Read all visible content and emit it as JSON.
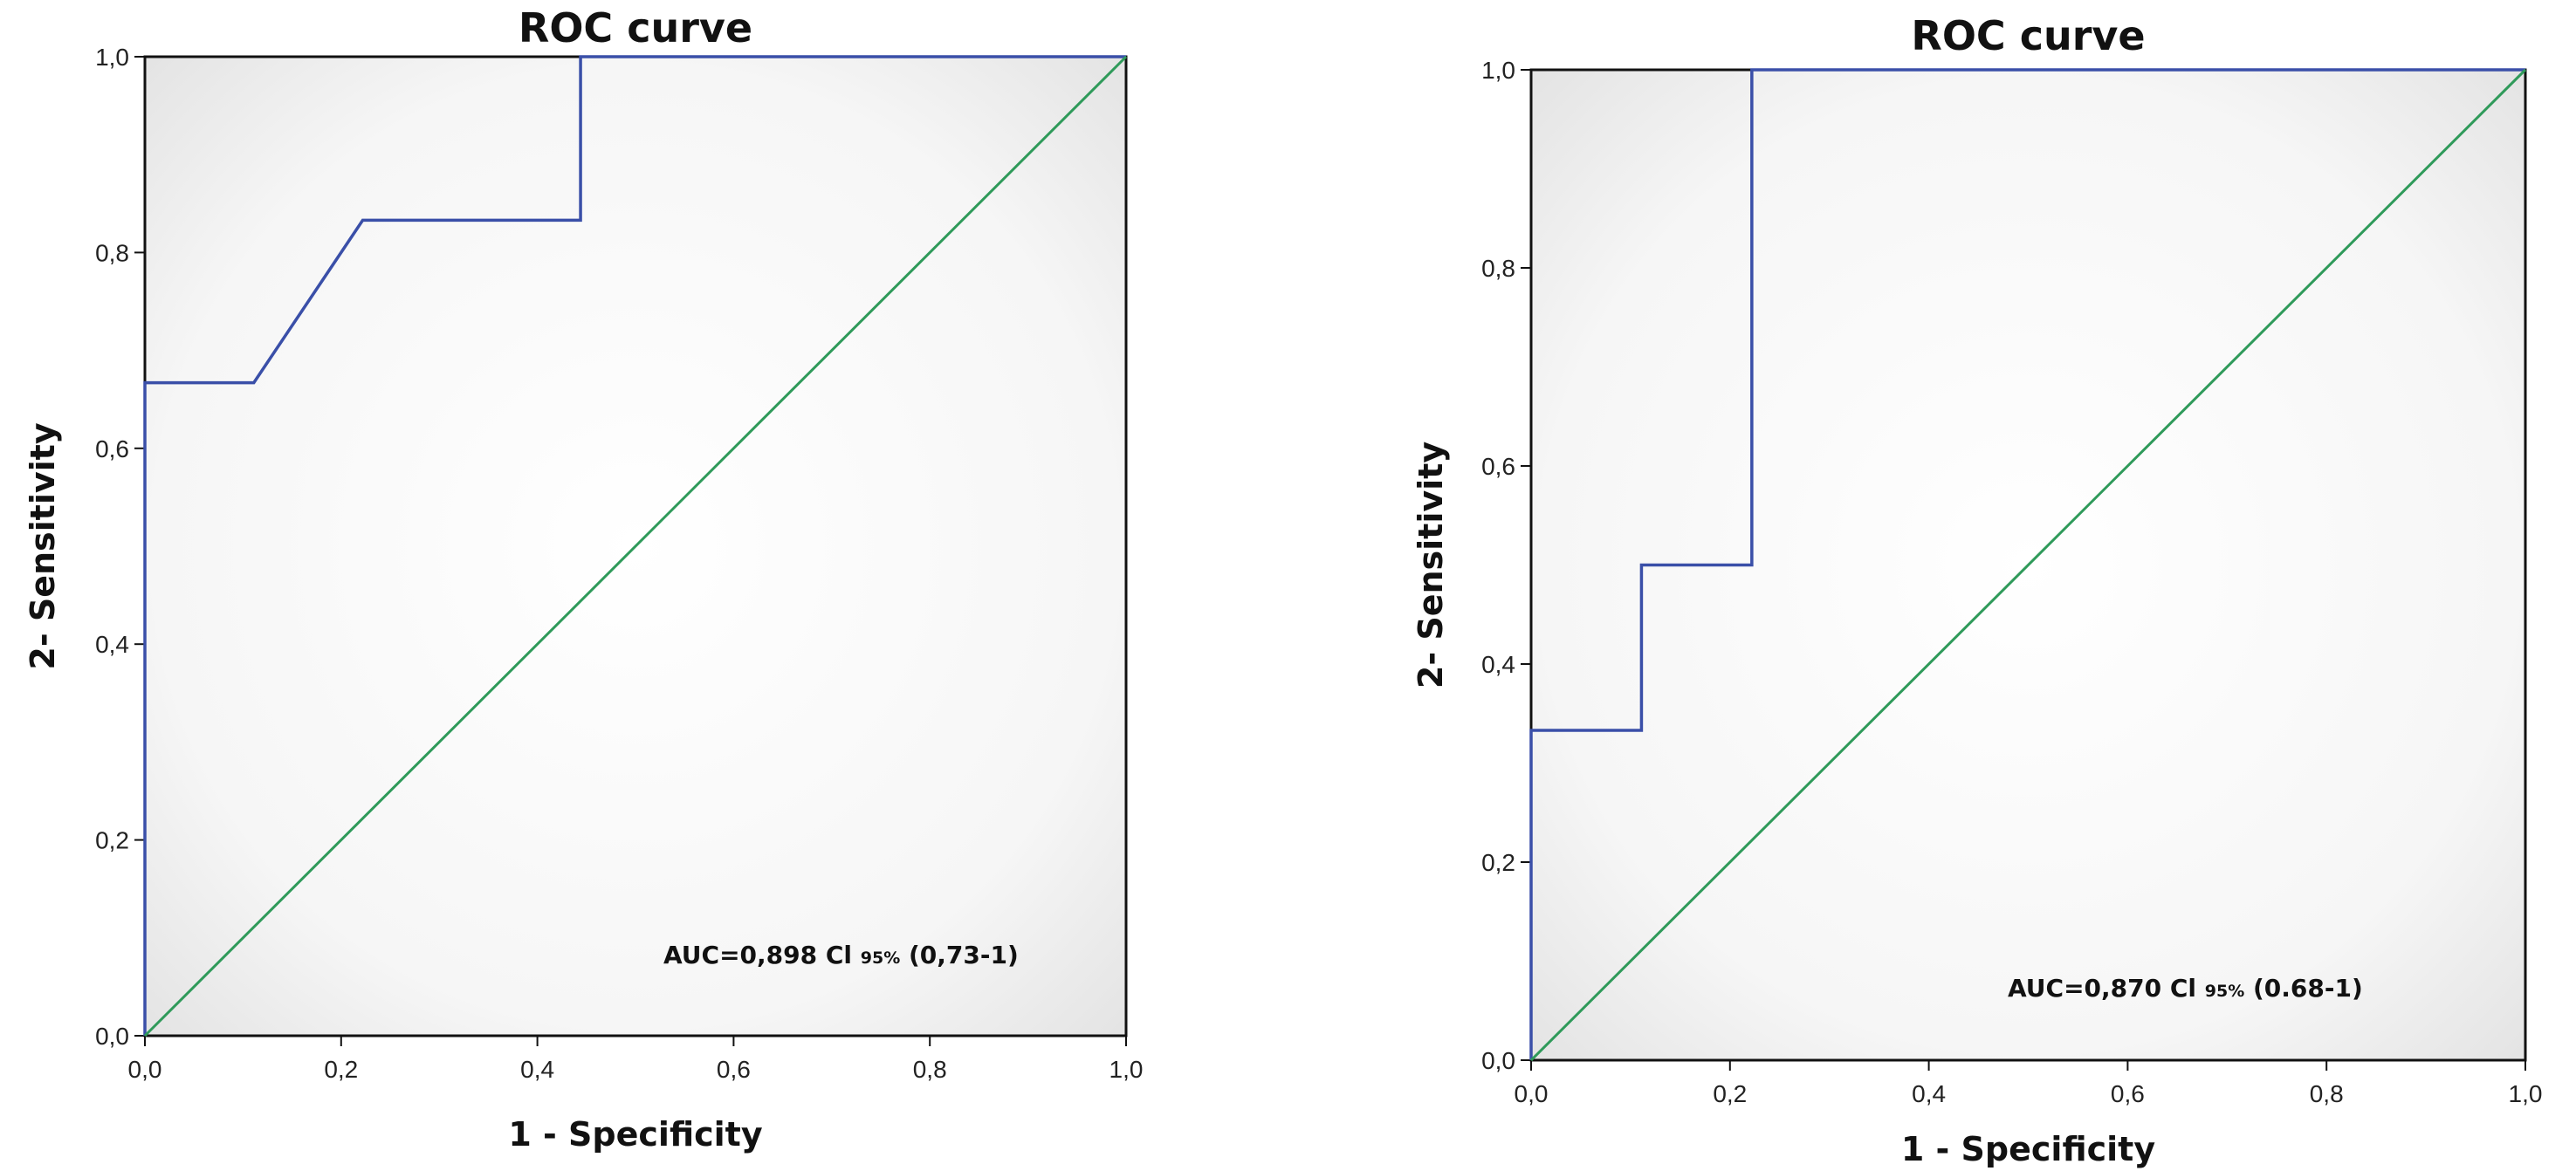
{
  "chart_data": [
    {
      "type": "line",
      "title": "ROC curve",
      "xlabel": "1 -  Specificity",
      "ylabel": "2- Sensitivity",
      "xlim": [
        0,
        1
      ],
      "ylim": [
        0,
        1
      ],
      "xticks": [
        "0,0",
        "0,2",
        "0,4",
        "0,6",
        "0,8",
        "1,0"
      ],
      "yticks": [
        "0,0",
        "0,2",
        "0,4",
        "0,6",
        "0,8",
        "1,0"
      ],
      "grid": false,
      "series": [
        {
          "name": "ROC",
          "color": "#3a4fa8",
          "x": [
            0,
            0,
            0.111,
            0.222,
            0.444,
            0.444,
            1.0
          ],
          "y": [
            0,
            0.667,
            0.667,
            0.833,
            0.833,
            1.0,
            1.0
          ]
        },
        {
          "name": "Reference line",
          "color": "#2f9a5a",
          "x": [
            0,
            1
          ],
          "y": [
            0,
            1
          ]
        }
      ],
      "annotation": {
        "main": "AUC=0,898  Cl ",
        "sub": "95%",
        "ci": " (0,73-1)"
      }
    },
    {
      "type": "line",
      "title": "ROC curve",
      "xlabel": "1 -  Specificity",
      "ylabel": "2- Sensitivity",
      "xlim": [
        0,
        1
      ],
      "ylim": [
        0,
        1
      ],
      "xticks": [
        "0,0",
        "0,2",
        "0,4",
        "0,6",
        "0,8",
        "1,0"
      ],
      "yticks": [
        "0,0",
        "0,2",
        "0,4",
        "0,6",
        "0,8",
        "1,0"
      ],
      "grid": false,
      "series": [
        {
          "name": "ROC",
          "color": "#3a4fa8",
          "x": [
            0,
            0,
            0.111,
            0.111,
            0.222,
            0.222,
            1.0
          ],
          "y": [
            0,
            0.333,
            0.333,
            0.5,
            0.5,
            1.0,
            1.0
          ]
        },
        {
          "name": "Reference line",
          "color": "#2f9a5a",
          "x": [
            0,
            1
          ],
          "y": [
            0,
            1
          ]
        }
      ],
      "annotation": {
        "main": "AUC=0,870  Cl ",
        "sub": "95%",
        "ci": " (0.68-1)"
      }
    }
  ]
}
